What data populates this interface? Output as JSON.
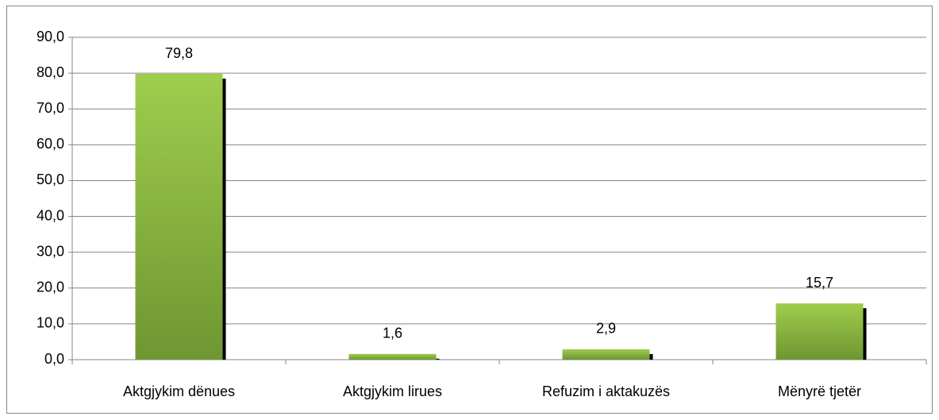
{
  "chart_data": {
    "type": "bar",
    "categories": [
      "Aktgjykim dënues",
      "Aktgjykim lirues",
      "Refuzim i aktakuzës",
      "Mënyrë tjetër"
    ],
    "values": [
      79.8,
      1.6,
      2.9,
      15.7
    ],
    "value_labels": [
      "79,8",
      "1,6",
      "2,9",
      "15,7"
    ],
    "color": "#8fbc45",
    "ylim": [
      0,
      90
    ],
    "yticks": [
      {
        "value": 0,
        "label": "0,0"
      },
      {
        "value": 10,
        "label": "10,0"
      },
      {
        "value": 20,
        "label": "20,0"
      },
      {
        "value": 30,
        "label": "30,0"
      },
      {
        "value": 40,
        "label": "40,0"
      },
      {
        "value": 50,
        "label": "50,0"
      },
      {
        "value": 60,
        "label": "60,0"
      },
      {
        "value": 70,
        "label": "70,0"
      },
      {
        "value": 80,
        "label": "80,0"
      },
      {
        "value": 90,
        "label": "90,0"
      }
    ],
    "grid": true
  }
}
